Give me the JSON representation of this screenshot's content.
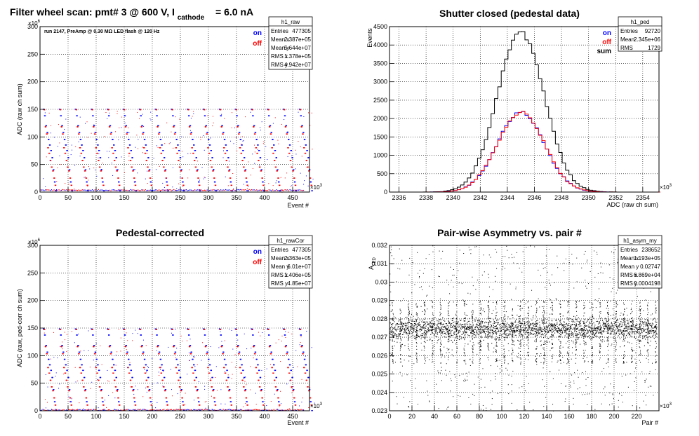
{
  "colors": {
    "on": "#0000ff",
    "off": "#ff0000",
    "sum": "#000000",
    "frame": "#000000",
    "grid": "#000000"
  },
  "panels": {
    "raw": {
      "title_prefix": "Filter wheel scan: pmt#   3 @   600 V, I",
      "title_sub": "cathode",
      "title_suffix": "= 6.0 nA",
      "subtitle": "run 2147, PreAmp @ 0.30 MΩ   LED flash @  120 Hz",
      "y_exponent_label": "×10",
      "y_exponent": "6",
      "x_exponent_label": "×10",
      "x_exponent": "3",
      "legend": [
        "on",
        "off"
      ],
      "stats": {
        "name": "h1_raw",
        "rows": [
          {
            "k": "Entries",
            "v": "477305"
          },
          {
            "k": "Mean x",
            "v": "2.387e+05"
          },
          {
            "k": "Mean y",
            "v": "5.644e+07"
          },
          {
            "k": "RMS x",
            "v": "1.378e+05"
          },
          {
            "k": "RMS y",
            "v": "4.942e+07"
          }
        ]
      }
    },
    "ped": {
      "title": "Shutter closed (pedestal data)",
      "x_exponent_label": "×10",
      "x_exponent": "3",
      "legend": [
        "on",
        "off",
        "sum"
      ],
      "stats": {
        "name": "h1_ped",
        "rows": [
          {
            "k": "Entries",
            "v": "92720"
          },
          {
            "k": "Mean",
            "v": "2.345e+06"
          },
          {
            "k": "RMS",
            "v": "1729"
          }
        ]
      }
    },
    "cor": {
      "title": "Pedestal-corrected",
      "y_exponent_label": "×10",
      "y_exponent": "6",
      "x_exponent_label": "×10",
      "x_exponent": "3",
      "legend": [
        "on",
        "off"
      ],
      "stats": {
        "name": "h1_rawCor",
        "rows": [
          {
            "k": "Entries",
            "v": "477305"
          },
          {
            "k": "Mean x",
            "v": "2.363e+05"
          },
          {
            "k": "Mean y",
            "v": "6.01e+07"
          },
          {
            "k": "RMS x",
            "v": "1.406e+05"
          },
          {
            "k": "RMS y",
            "v": "4.85e+07"
          }
        ]
      }
    },
    "asym": {
      "title": "Pair-wise Asymmetry vs. pair #",
      "x_exponent_label": "×10",
      "x_exponent": "3",
      "stats": {
        "name": "h1_asym_my",
        "rows": [
          {
            "k": "Entries",
            "v": "238652"
          },
          {
            "k": "Mean x",
            "v": "1.193e+05"
          },
          {
            "k": "Mean y",
            "v": "0.02747"
          },
          {
            "k": "RMS x",
            "v": "6.869e+04"
          },
          {
            "k": "RMS y",
            "v": "0.0004198"
          }
        ]
      }
    }
  },
  "chart_data": [
    {
      "id": "raw",
      "type": "scatter",
      "xlabel": "Event #",
      "ylabel": "ADC (raw ch sum)",
      "xlim": [
        0,
        480
      ],
      "ylim": [
        0,
        300
      ],
      "x_ticks": [
        "0",
        "50",
        "100",
        "150",
        "200",
        "250",
        "300",
        "350",
        "400",
        "450"
      ],
      "y_ticks": [
        "0",
        "50",
        "100",
        "150",
        "200",
        "250",
        "300"
      ],
      "description_levels_on": [
        150,
        138,
        120,
        108,
        95,
        85,
        75,
        62,
        40,
        18,
        2
      ],
      "description_levels_off": [
        149,
        118,
        105,
        80,
        70,
        57,
        45,
        38,
        25,
        12
      ],
      "series": [
        {
          "name": "on"
        },
        {
          "name": "off"
        }
      ]
    },
    {
      "id": "ped",
      "type": "histogram",
      "xlabel": "ADC (raw ch sum)",
      "ylabel": "Events",
      "xlim": [
        2335.3,
        2355.2
      ],
      "ylim": [
        0,
        4500
      ],
      "x_ticks": [
        "2336",
        "2338",
        "2340",
        "2342",
        "2344",
        "2346",
        "2348",
        "2350",
        "2352",
        "2354"
      ],
      "y_ticks": [
        "0",
        "500",
        "1000",
        "1500",
        "2000",
        "2500",
        "3000",
        "3500",
        "4000",
        "4500"
      ],
      "series": [
        {
          "name": "sum",
          "mean": 2345.0,
          "sigma": 1.73,
          "peak": 4350
        },
        {
          "name": "on",
          "mean": 2345.0,
          "sigma": 1.73,
          "peak": 2175
        },
        {
          "name": "off",
          "mean": 2345.0,
          "sigma": 1.73,
          "peak": 2175
        }
      ]
    },
    {
      "id": "cor",
      "type": "scatter",
      "xlabel": "Event #",
      "ylabel": "ADC (raw, ped-corr ch sum)",
      "xlim": [
        0,
        480
      ],
      "ylim": [
        0,
        300
      ],
      "x_ticks": [
        "0",
        "50",
        "100",
        "150",
        "200",
        "250",
        "300",
        "350",
        "400",
        "450"
      ],
      "y_ticks": [
        "0",
        "50",
        "100",
        "150",
        "200",
        "250",
        "300"
      ],
      "description_levels_on": [
        148,
        137,
        118,
        106,
        93,
        83,
        73,
        60,
        38,
        16,
        0
      ],
      "description_levels_off": [
        147,
        116,
        103,
        78,
        68,
        55,
        43,
        36,
        23,
        10
      ],
      "series": [
        {
          "name": "on"
        },
        {
          "name": "off"
        }
      ]
    },
    {
      "id": "asym",
      "type": "scatter",
      "xlabel": "Pair #",
      "ylabel": "A",
      "ylabel_sub": "LED",
      "xlim": [
        0,
        240
      ],
      "ylim": [
        0.023,
        0.032
      ],
      "x_ticks": [
        "0",
        "20",
        "40",
        "60",
        "80",
        "100",
        "120",
        "140",
        "160",
        "180",
        "200",
        "220"
      ],
      "y_ticks": [
        "0.023",
        "0.024",
        "0.025",
        "0.026",
        "0.027",
        "0.028",
        "0.029",
        "0.03",
        "0.031",
        "0.032"
      ],
      "band_center": 0.02747,
      "band_halfwidth": 0.0005,
      "series": [
        {
          "name": "asymmetry"
        }
      ]
    }
  ]
}
